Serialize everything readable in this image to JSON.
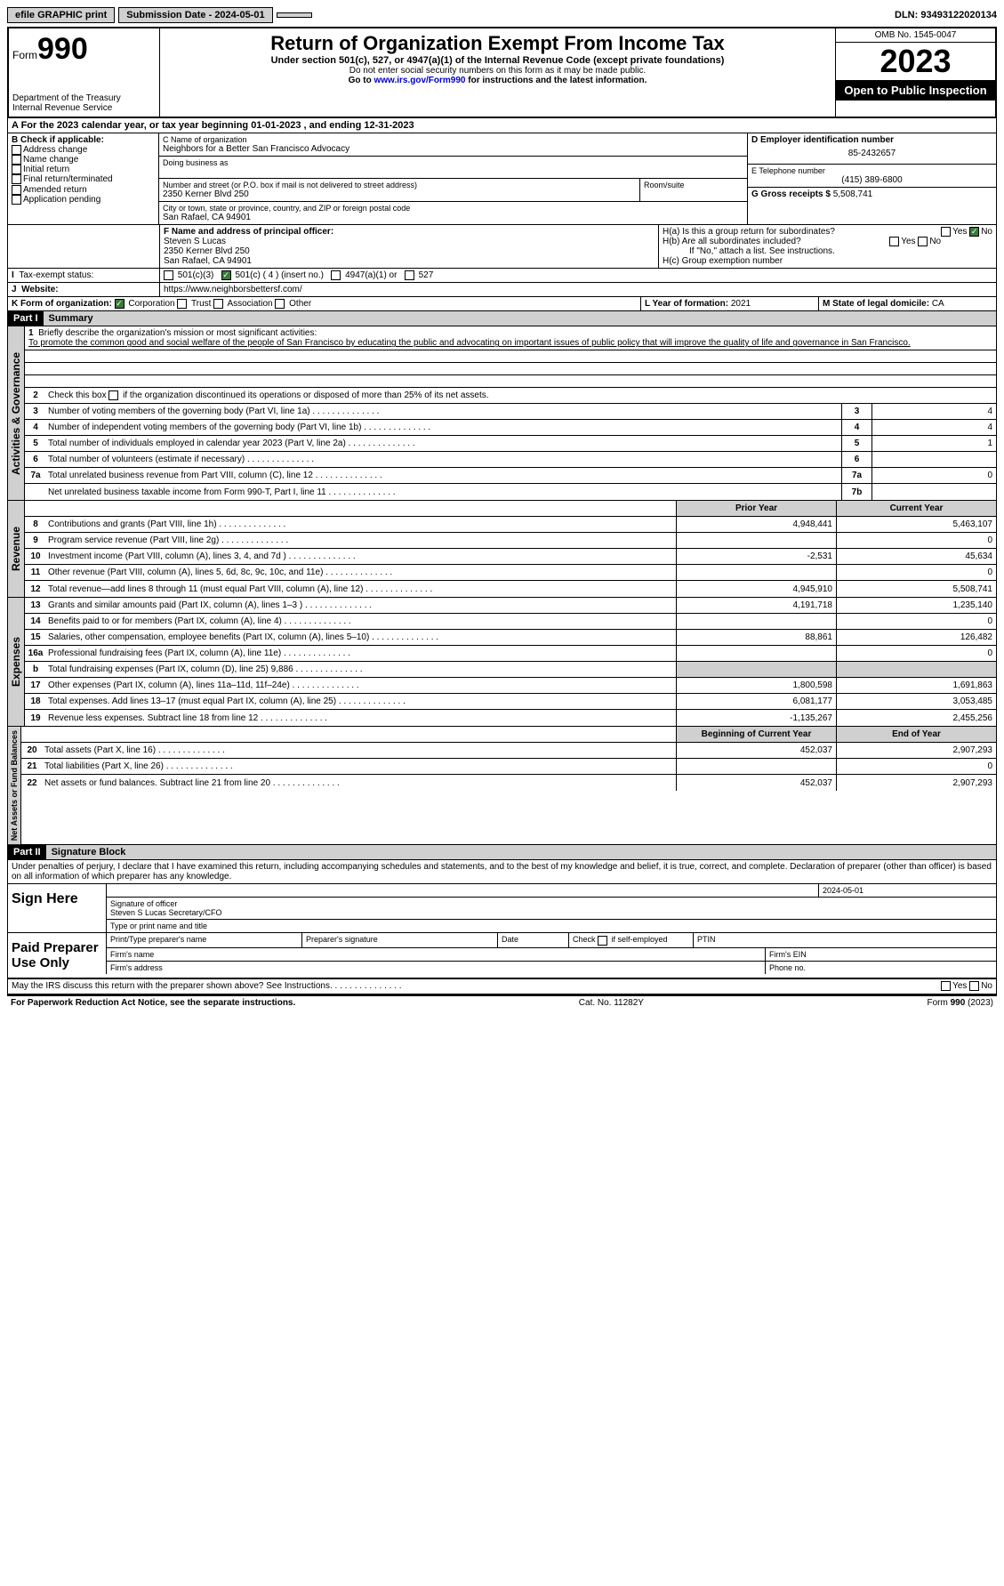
{
  "topbar": {
    "efile": "efile GRAPHIC print",
    "submission": "Submission Date - 2024-05-01",
    "dln": "DLN: 93493122020134"
  },
  "header": {
    "form_label": "Form",
    "form_num": "990",
    "title": "Return of Organization Exempt From Income Tax",
    "subtitle": "Under section 501(c), 527, or 4947(a)(1) of the Internal Revenue Code (except private foundations)",
    "note1": "Do not enter social security numbers on this form as it may be made public.",
    "note2": "Go to www.irs.gov/Form990 for instructions and the latest information.",
    "dept": "Department of the Treasury\nInternal Revenue Service",
    "omb": "OMB No. 1545-0047",
    "year": "2023",
    "inspect": "Open to Public Inspection"
  },
  "row_a": "A For the 2023 calendar year, or tax year beginning 01-01-2023    , and ending 12-31-2023",
  "box_b": {
    "label": "B Check if applicable:",
    "items": [
      "Address change",
      "Name change",
      "Initial return",
      "Final return/terminated",
      "Amended return",
      "Application pending"
    ]
  },
  "box_c": {
    "name_label": "C Name of organization",
    "name": "Neighbors for a Better San Francisco Advocacy",
    "dba_label": "Doing business as",
    "street_label": "Number and street (or P.O. box if mail is not delivered to street address)",
    "street": "2350 Kerner Blvd 250",
    "room_label": "Room/suite",
    "city_label": "City or town, state or province, country, and ZIP or foreign postal code",
    "city": "San Rafael, CA  94901"
  },
  "box_d": {
    "label": "D Employer identification number",
    "ein": "85-2432657",
    "tel_label": "E Telephone number",
    "tel": "(415) 389-6800",
    "gross_label": "G Gross receipts $",
    "gross": "5,508,741"
  },
  "box_f": {
    "label": "F Name and address of principal officer:",
    "name": "Steven S Lucas",
    "addr1": "2350 Kerner Blvd 250",
    "addr2": "San Rafael, CA  94901"
  },
  "box_h": {
    "a": "H(a)  Is this a group return for subordinates?",
    "b": "H(b)  Are all subordinates included?",
    "b_note": "If \"No,\" attach a list. See instructions.",
    "c": "H(c)  Group exemption number"
  },
  "box_i": {
    "label": "Tax-exempt status:",
    "opts": [
      "501(c)(3)",
      "501(c) ( 4 ) (insert no.)",
      "4947(a)(1) or",
      "527"
    ]
  },
  "box_j": {
    "label": "Website:",
    "url": "https://www.neighborsbettersf.com/"
  },
  "box_k": {
    "label": "K Form of organization:",
    "opts": [
      "Corporation",
      "Trust",
      "Association",
      "Other"
    ]
  },
  "box_l": {
    "label": "L Year of formation:",
    "val": "2021"
  },
  "box_m": {
    "label": "M State of legal domicile:",
    "val": "CA"
  },
  "part1": {
    "tag": "Part I",
    "title": "Summary",
    "tab1": "Activities & Governance",
    "q1": "Briefly describe the organization's mission or most significant activities:",
    "mission": "To promote the common good and social welfare of the people of San Francisco by educating the public and advocating on important issues of public policy that will improve the quality of life and governance in San Francisco.",
    "q2": "Check this box       if the organization discontinued its operations or disposed of more than 25% of its net assets.",
    "lines": [
      {
        "n": "3",
        "t": "Number of voting members of the governing body (Part VI, line 1a)",
        "b": "3",
        "v": "4"
      },
      {
        "n": "4",
        "t": "Number of independent voting members of the governing body (Part VI, line 1b)",
        "b": "4",
        "v": "4"
      },
      {
        "n": "5",
        "t": "Total number of individuals employed in calendar year 2023 (Part V, line 2a)",
        "b": "5",
        "v": "1"
      },
      {
        "n": "6",
        "t": "Total number of volunteers (estimate if necessary)",
        "b": "6",
        "v": ""
      },
      {
        "n": "7a",
        "t": "Total unrelated business revenue from Part VIII, column (C), line 12",
        "b": "7a",
        "v": "0"
      },
      {
        "n": "",
        "t": "Net unrelated business taxable income from Form 990-T, Part I, line 11",
        "b": "7b",
        "v": ""
      }
    ],
    "tab2": "Revenue",
    "hdr_prior": "Prior Year",
    "hdr_curr": "Current Year",
    "rev": [
      {
        "n": "8",
        "t": "Contributions and grants (Part VIII, line 1h)",
        "p": "4,948,441",
        "c": "5,463,107"
      },
      {
        "n": "9",
        "t": "Program service revenue (Part VIII, line 2g)",
        "p": "",
        "c": "0"
      },
      {
        "n": "10",
        "t": "Investment income (Part VIII, column (A), lines 3, 4, and 7d )",
        "p": "-2,531",
        "c": "45,634"
      },
      {
        "n": "11",
        "t": "Other revenue (Part VIII, column (A), lines 5, 6d, 8c, 9c, 10c, and 11e)",
        "p": "",
        "c": "0"
      },
      {
        "n": "12",
        "t": "Total revenue—add lines 8 through 11 (must equal Part VIII, column (A), line 12)",
        "p": "4,945,910",
        "c": "5,508,741"
      }
    ],
    "tab3": "Expenses",
    "exp": [
      {
        "n": "13",
        "t": "Grants and similar amounts paid (Part IX, column (A), lines 1–3 )",
        "p": "4,191,718",
        "c": "1,235,140"
      },
      {
        "n": "14",
        "t": "Benefits paid to or for members (Part IX, column (A), line 4)",
        "p": "",
        "c": "0"
      },
      {
        "n": "15",
        "t": "Salaries, other compensation, employee benefits (Part IX, column (A), lines 5–10)",
        "p": "88,861",
        "c": "126,482"
      },
      {
        "n": "16a",
        "t": "Professional fundraising fees (Part IX, column (A), line 11e)",
        "p": "",
        "c": "0"
      },
      {
        "n": "b",
        "t": "Total fundraising expenses (Part IX, column (D), line 25) 9,886",
        "p": "gray",
        "c": "gray"
      },
      {
        "n": "17",
        "t": "Other expenses (Part IX, column (A), lines 11a–11d, 11f–24e)",
        "p": "1,800,598",
        "c": "1,691,863"
      },
      {
        "n": "18",
        "t": "Total expenses. Add lines 13–17 (must equal Part IX, column (A), line 25)",
        "p": "6,081,177",
        "c": "3,053,485"
      },
      {
        "n": "19",
        "t": "Revenue less expenses. Subtract line 18 from line 12",
        "p": "-1,135,267",
        "c": "2,455,256"
      }
    ],
    "tab4": "Net Assets or Fund Balances",
    "hdr_beg": "Beginning of Current Year",
    "hdr_end": "End of Year",
    "net": [
      {
        "n": "20",
        "t": "Total assets (Part X, line 16)",
        "p": "452,037",
        "c": "2,907,293"
      },
      {
        "n": "21",
        "t": "Total liabilities (Part X, line 26)",
        "p": "",
        "c": "0"
      },
      {
        "n": "22",
        "t": "Net assets or fund balances. Subtract line 21 from line 20",
        "p": "452,037",
        "c": "2,907,293"
      }
    ]
  },
  "part2": {
    "tag": "Part II",
    "title": "Signature Block",
    "decl": "Under penalties of perjury, I declare that I have examined this return, including accompanying schedules and statements, and to the best of my knowledge and belief, it is true, correct, and complete. Declaration of preparer (other than officer) is based on all information of which preparer has any knowledge.",
    "sign_here": "Sign Here",
    "sig_date": "2024-05-01",
    "sig_officer_label": "Signature of officer",
    "sig_officer": "Steven S Lucas  Secretary/CFO",
    "sig_title_label": "Type or print name and title",
    "paid": "Paid Preparer Use Only",
    "prep_name": "Print/Type preparer's name",
    "prep_sig": "Preparer's signature",
    "date": "Date",
    "self_emp": "Check       if self-employed",
    "ptin": "PTIN",
    "firm_name": "Firm's name",
    "firm_ein": "Firm's EIN",
    "firm_addr": "Firm's address",
    "phone": "Phone no.",
    "discuss": "May the IRS discuss this return with the preparer shown above? See Instructions."
  },
  "footer": {
    "left": "For Paperwork Reduction Act Notice, see the separate instructions.",
    "mid": "Cat. No. 11282Y",
    "right": "Form 990 (2023)"
  }
}
